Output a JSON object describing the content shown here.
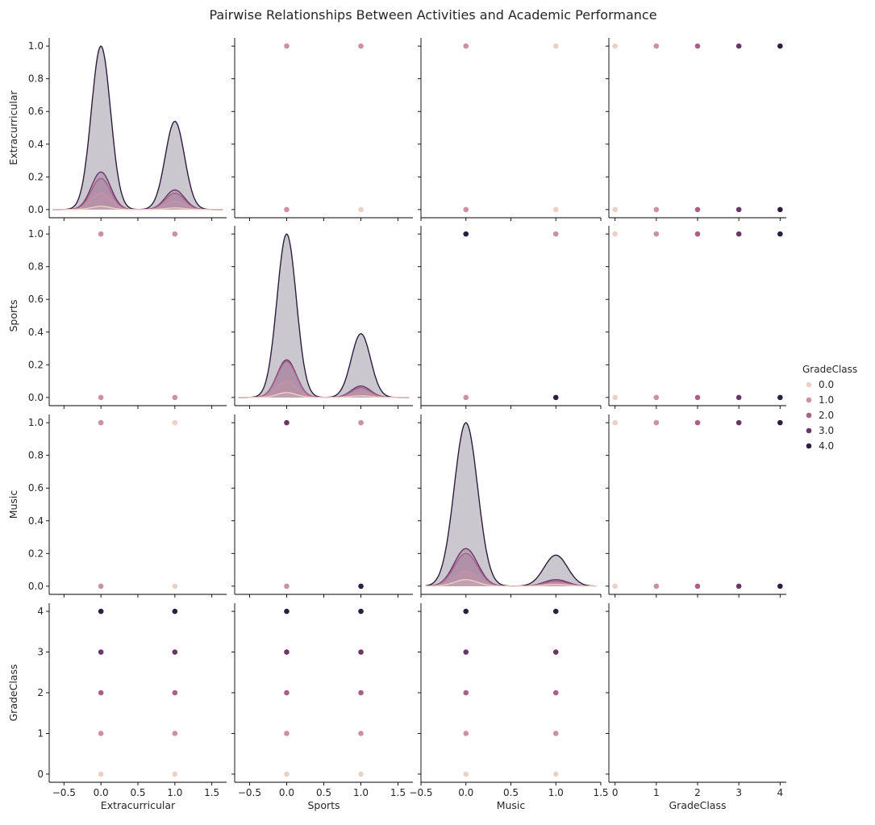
{
  "title": "Pairwise Relationships Between Activities and Academic Performance",
  "legend": {
    "title": "GradeClass",
    "placement": "right",
    "entries": [
      "0.0",
      "1.0",
      "2.0",
      "3.0",
      "4.0"
    ],
    "colors": [
      "#ecd0c6",
      "#cc90a3",
      "#a95f8a",
      "#6a3669",
      "#2d1e3e"
    ]
  },
  "chart_data": {
    "type": "scatter",
    "kind": "pairplot",
    "hue": "GradeClass",
    "variables": [
      "Extracurricular",
      "Sports",
      "Music",
      "GradeClass"
    ],
    "axes": {
      "Extracurricular": {
        "range": [
          -0.7,
          1.7
        ],
        "ticks": [
          -0.5,
          0,
          0.5,
          1,
          1.5
        ],
        "tick_labels": [
          "−0.5",
          "0.0",
          "0.5",
          "1.0",
          "1.5"
        ]
      },
      "Sports": {
        "range": [
          -0.7,
          1.7
        ],
        "ticks": [
          -0.5,
          0,
          0.5,
          1,
          1.5
        ],
        "tick_labels": [
          "−0.5",
          "0.0",
          "0.5",
          "1.0",
          "1.5"
        ]
      },
      "Music": {
        "range": [
          -0.5,
          1.5
        ],
        "ticks": [
          -0.5,
          0,
          0.5,
          1,
          1.5
        ],
        "tick_labels": [
          "−0.5",
          "0.0",
          "0.5",
          "1.0",
          "1.5"
        ]
      },
      "GradeClass": {
        "range": [
          -0.15,
          4.15
        ],
        "ticks": [
          0,
          1,
          2,
          3,
          4
        ],
        "tick_labels": [
          "0",
          "1",
          "2",
          "3",
          "4"
        ]
      }
    },
    "row_axes": {
      "Extracurricular": {
        "range": [
          -0.05,
          1.05
        ],
        "ticks": [
          0,
          0.2,
          0.4,
          0.6,
          0.8,
          1.0
        ],
        "tick_labels": [
          "0.0",
          "0.2",
          "0.4",
          "0.6",
          "0.8",
          "1.0"
        ]
      },
      "Sports": {
        "range": [
          -0.05,
          1.05
        ],
        "ticks": [
          0,
          0.2,
          0.4,
          0.6,
          0.8,
          1.0
        ],
        "tick_labels": [
          "0.0",
          "0.2",
          "0.4",
          "0.6",
          "0.8",
          "1.0"
        ]
      },
      "Music": {
        "range": [
          -0.05,
          1.05
        ],
        "ticks": [
          0,
          0.2,
          0.4,
          0.6,
          0.8,
          1.0
        ],
        "tick_labels": [
          "0.0",
          "0.2",
          "0.4",
          "0.6",
          "0.8",
          "1.0"
        ]
      },
      "GradeClass": {
        "range": [
          -0.2,
          4.2
        ],
        "ticks": [
          0,
          1,
          2,
          3,
          4
        ],
        "tick_labels": [
          "0",
          "1",
          "2",
          "3",
          "4"
        ]
      }
    },
    "density_peaks": {
      "Extracurricular": {
        "at0": [
          0.02,
          0.1,
          0.19,
          0.23,
          1.0
        ],
        "at1": [
          0.01,
          0.05,
          0.1,
          0.12,
          0.54
        ]
      },
      "Sports": {
        "at0": [
          0.03,
          0.1,
          0.22,
          0.23,
          1.0
        ],
        "at1": [
          0.01,
          0.03,
          0.06,
          0.07,
          0.39
        ]
      },
      "Music": {
        "at0": [
          0.04,
          0.09,
          0.2,
          0.23,
          1.0
        ],
        "at1": [
          0.01,
          0.02,
          0.03,
          0.04,
          0.19
        ]
      }
    },
    "scatter_points": {
      "Extracurricular|Sports": {
        "0,0": 1,
        "0,1": 1,
        "1,0": 0,
        "1,1": 1
      },
      "Extracurricular|Music": {
        "0,0": 1,
        "0,1": 1,
        "1,0": 0,
        "1,1": 0
      },
      "Sports|Extracurricular": {
        "0,0": 1,
        "0,1": 1,
        "1,0": 1,
        "1,1": 1
      },
      "Sports|Music": {
        "0,0": 1,
        "0,1": 4,
        "1,0": 4,
        "1,1": 1
      },
      "Music|Extracurricular": {
        "0,0": 1,
        "0,1": 1,
        "1,0": 0,
        "1,1": 0
      },
      "Music|Sports": {
        "0,0": 1,
        "0,1": 3,
        "1,0": 4,
        "1,1": 1
      }
    },
    "rows_by_grade_top_color": {
      "Extracurricular|GradeClass": {
        "0": 0,
        "1": 4
      },
      "Sports|GradeClass": {
        "0": 4,
        "1": 4
      },
      "Music|GradeClass": {
        "0": 4,
        "1": 4
      }
    }
  }
}
